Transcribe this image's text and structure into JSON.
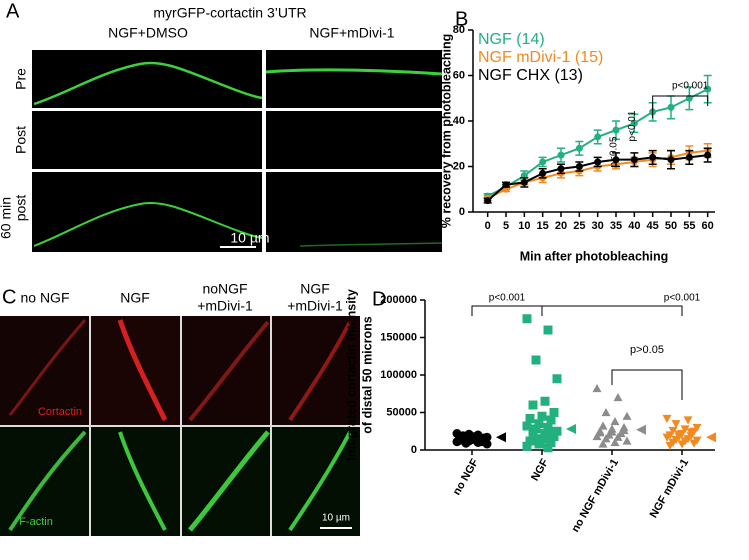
{
  "panels": {
    "a": {
      "letter": "A",
      "title": "myrGFP-cortactin 3’UTR",
      "columns": [
        "NGF+DMSO",
        "NGF+mDivi-1"
      ],
      "rows": [
        "Pre",
        "Post",
        "post"
      ],
      "time": "60 min",
      "scale": "10 µm"
    },
    "b": {
      "letter": "B"
    },
    "c": {
      "letter": "C",
      "columns": [
        [
          "no NGF"
        ],
        [
          "NGF"
        ],
        [
          "noNGF",
          "+mDivi-1"
        ],
        [
          "NGF",
          "+mDivi-1"
        ]
      ],
      "rows": [
        "Cortactin",
        "F-actin"
      ],
      "scale": "10 µm"
    },
    "d": {
      "letter": "D"
    }
  },
  "chart_data": [
    {
      "type": "line",
      "xlabel": "Min after photobleaching",
      "ylabel": "% recovery from photobleaching",
      "x": [
        0,
        5,
        10,
        15,
        20,
        25,
        30,
        35,
        40,
        45,
        50,
        55,
        60
      ],
      "xlim": [
        -4,
        62
      ],
      "xticks": [
        0,
        5,
        10,
        15,
        20,
        25,
        30,
        35,
        40,
        45,
        50,
        55,
        60
      ],
      "ylim": [
        0,
        80
      ],
      "yticks": [
        0,
        20,
        40,
        60,
        80
      ],
      "grid": false,
      "series": [
        {
          "name": "NGF (14)",
          "color": "#23b07f",
          "values": [
            7,
            11,
            16,
            22,
            25,
            28,
            33,
            36,
            39,
            44,
            46,
            50,
            54
          ],
          "errors": [
            1,
            1,
            2,
            2,
            3,
            3,
            3,
            4,
            4,
            4,
            5,
            5,
            6
          ]
        },
        {
          "name": "NGF mDivi-1 (15)",
          "color": "#f28a1f",
          "values": [
            6,
            10,
            13,
            15,
            17,
            18,
            20,
            21,
            22,
            23,
            24,
            26,
            27
          ],
          "errors": [
            1,
            1,
            1,
            2,
            2,
            2,
            2,
            2,
            2,
            3,
            3,
            3,
            3
          ]
        },
        {
          "name": "NGF CHX (13)",
          "color": "#000000",
          "values": [
            5,
            12,
            13,
            17,
            19,
            20,
            22,
            23,
            23,
            24,
            23,
            24,
            25
          ],
          "errors": [
            1,
            1,
            2,
            2,
            2,
            2,
            2,
            3,
            3,
            3,
            4,
            3,
            3
          ]
        }
      ],
      "annotations": [
        "p<0.05",
        "p<0.01",
        "p<0.001"
      ]
    },
    {
      "type": "strip",
      "ylabel": [
        "Integrated cortactin intensity",
        "of distal 50 microns"
      ],
      "ylim": [
        0,
        200000
      ],
      "yticks": [
        0,
        50000,
        100000,
        150000,
        200000
      ],
      "series": [
        {
          "name": "no NGF",
          "color": "#000000",
          "shape": "circle",
          "marker": 17000,
          "values": [
            22000,
            20000,
            18000,
            17000,
            16000,
            15000,
            15000,
            14000,
            13000,
            12000,
            12000,
            11000,
            10000,
            9000,
            8000,
            18000,
            19000,
            16000,
            14000,
            13000,
            11000,
            21000
          ]
        },
        {
          "name": "NGF",
          "color": "#23b07f",
          "shape": "square",
          "marker": 28000,
          "values": [
            175000,
            160000,
            120000,
            95000,
            65000,
            60000,
            50000,
            45000,
            42000,
            40000,
            35000,
            32000,
            30000,
            28000,
            25000,
            22000,
            20000,
            18000,
            15000,
            12000,
            10000,
            8000,
            5000,
            3000
          ]
        },
        {
          "name": "no NGF mDivi-1",
          "color": "#8c8c8c",
          "shape": "triangle",
          "marker": 27000,
          "values": [
            82000,
            70000,
            50000,
            45000,
            38000,
            32000,
            30000,
            28000,
            25000,
            22000,
            20000,
            18000,
            17000,
            15000,
            12000,
            10000,
            8000,
            26000,
            24000,
            23000
          ]
        },
        {
          "name": "NGF mDivi-1",
          "color": "#f28a1f",
          "shape": "down-triangle",
          "marker": 17000,
          "values": [
            42000,
            40000,
            35000,
            30000,
            28000,
            26000,
            25000,
            22000,
            20000,
            19000,
            18000,
            17000,
            15000,
            14000,
            13000,
            12000,
            10000,
            9000,
            8000,
            6000,
            24000,
            21000
          ]
        }
      ],
      "annotations": [
        "p<0.001",
        "p<0.001",
        "p>0.05"
      ]
    }
  ]
}
